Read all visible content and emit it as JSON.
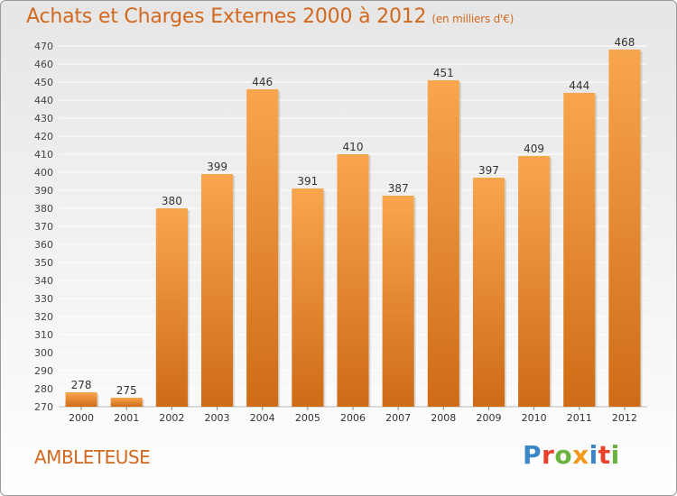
{
  "header": {
    "title": "Achats et Charges Externes 2000 à 2012",
    "subtitle": "(en milliers d'€)"
  },
  "footer": {
    "commune": "AMBLETEUSE",
    "logo_text": "Proxiti",
    "logo_colors": [
      "#3a86c8",
      "#e8412c",
      "#6ab43e",
      "#f29a1e",
      "#3a86c8",
      "#e8412c",
      "#6ab43e"
    ]
  },
  "colors": {
    "bar_light": "#f8a64e",
    "bar_dark": "#cf6b16",
    "text": "#d2691e",
    "grid": "#ffffff"
  },
  "chart_data": {
    "type": "bar",
    "categories": [
      "2000",
      "2001",
      "2002",
      "2003",
      "2004",
      "2005",
      "2006",
      "2007",
      "2008",
      "2009",
      "2010",
      "2011",
      "2012"
    ],
    "values": [
      278,
      275,
      380,
      399,
      446,
      391,
      410,
      387,
      451,
      397,
      409,
      444,
      468
    ],
    "title": "Achats et Charges Externes 2000 à 2012",
    "subtitle": "(en milliers d'€)",
    "xlabel": "",
    "ylabel": "",
    "ylim": [
      270,
      470
    ],
    "yticks": [
      270,
      280,
      290,
      300,
      310,
      320,
      330,
      340,
      350,
      360,
      370,
      380,
      390,
      400,
      410,
      420,
      430,
      440,
      450,
      460,
      470
    ],
    "grid": true,
    "data_labels": true
  }
}
